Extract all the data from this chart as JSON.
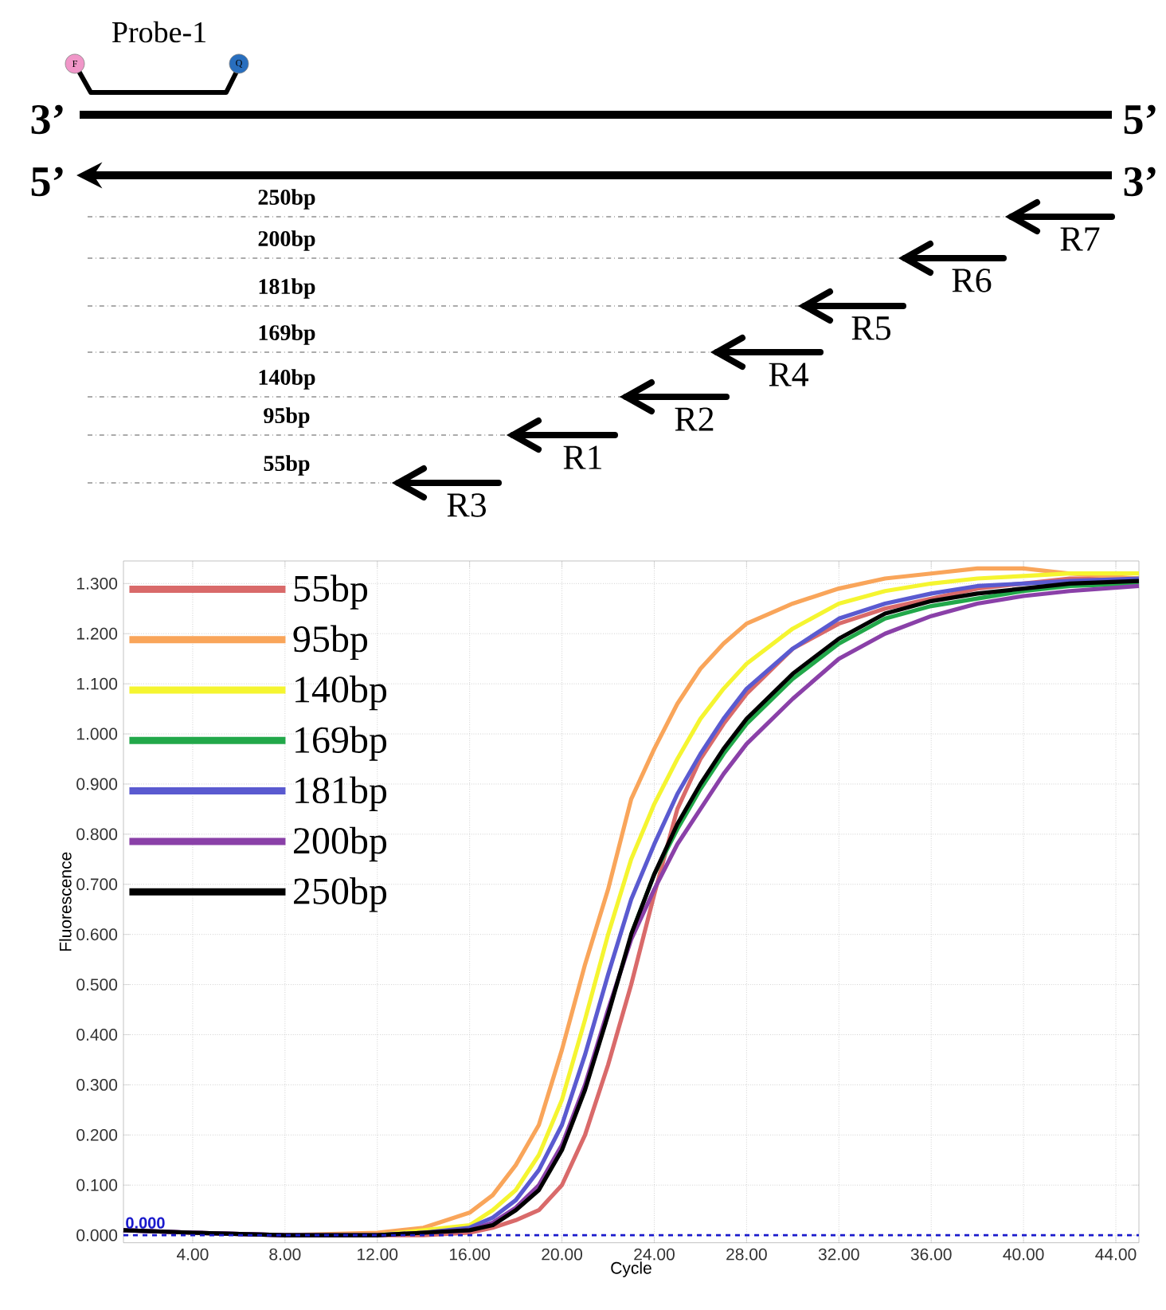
{
  "chart_data": [
    {
      "type": "other",
      "annotations": [
        "Probe-1",
        "F",
        "Q",
        "3’",
        "5’",
        "5’",
        "3’",
        "250bp",
        "R7",
        "200bp",
        "R6",
        "181bp",
        "R5",
        "169bp",
        "R4",
        "140bp",
        "R2",
        "95bp",
        "R1",
        "55bp",
        "R3"
      ]
    },
    {
      "type": "line",
      "xlabel": "Cycle",
      "ylabel": "Fluorescence",
      "xlim": [
        1,
        45
      ],
      "ylim": [
        -0.015,
        1.345
      ],
      "xticks": [
        {
          "value": 4,
          "label": "4.00"
        },
        {
          "value": 8,
          "label": "8.00"
        },
        {
          "value": 12,
          "label": "12.00"
        },
        {
          "value": 16,
          "label": "16.00"
        },
        {
          "value": 20,
          "label": "20.00"
        },
        {
          "value": 24,
          "label": "24.00"
        },
        {
          "value": 28,
          "label": "28.00"
        },
        {
          "value": 32,
          "label": "32.00"
        },
        {
          "value": 36,
          "label": "36.00"
        },
        {
          "value": 40,
          "label": "40.00"
        },
        {
          "value": 44,
          "label": "44.00"
        }
      ],
      "yticks": [
        {
          "value": 0,
          "label": "0.000"
        },
        {
          "value": 0.1,
          "label": "0.100"
        },
        {
          "value": 0.2,
          "label": "0.200"
        },
        {
          "value": 0.3,
          "label": "0.300"
        },
        {
          "value": 0.4,
          "label": "0.400"
        },
        {
          "value": 0.5,
          "label": "0.500"
        },
        {
          "value": 0.6,
          "label": "0.600"
        },
        {
          "value": 0.7,
          "label": "0.700"
        },
        {
          "value": 0.8,
          "label": "0.800"
        },
        {
          "value": 0.9,
          "label": "0.900"
        },
        {
          "value": 1.0,
          "label": "1.000"
        },
        {
          "value": 1.1,
          "label": "1.100"
        },
        {
          "value": 1.2,
          "label": "1.200"
        },
        {
          "value": 1.3,
          "label": "1.300"
        }
      ],
      "grid": true,
      "legend": "top left",
      "line_style": "solid",
      "x": [
        1,
        4,
        8,
        12,
        14,
        16,
        17,
        18,
        19,
        20,
        21,
        22,
        23,
        24,
        25,
        26,
        27,
        28,
        30,
        32,
        34,
        36,
        38,
        40,
        42,
        45
      ],
      "ref_lines": [
        {
          "axis": "y",
          "value": 0,
          "label": "0.000",
          "color": "#1a1acc",
          "line_style": "dashed"
        }
      ],
      "series": [
        {
          "name": "55bp",
          "color": "#d96a6a",
          "values": [
            0.01,
            0.005,
            0.0,
            0.0,
            0.0,
            0.005,
            0.015,
            0.03,
            0.05,
            0.1,
            0.2,
            0.34,
            0.5,
            0.68,
            0.85,
            0.95,
            1.02,
            1.08,
            1.17,
            1.22,
            1.25,
            1.27,
            1.29,
            1.3,
            1.31,
            1.31
          ]
        },
        {
          "name": "95bp",
          "color": "#f9a55a",
          "values": [
            null,
            null,
            0.0,
            0.005,
            0.015,
            0.045,
            0.08,
            0.14,
            0.22,
            0.37,
            0.54,
            0.69,
            0.87,
            0.97,
            1.06,
            1.13,
            1.18,
            1.22,
            1.26,
            1.29,
            1.31,
            1.32,
            1.33,
            1.33,
            1.32,
            1.31
          ]
        },
        {
          "name": "140bp",
          "color": "#f5f530",
          "values": [
            null,
            null,
            0.0,
            0.0,
            0.01,
            0.02,
            0.05,
            0.09,
            0.16,
            0.27,
            0.43,
            0.6,
            0.75,
            0.86,
            0.95,
            1.03,
            1.09,
            1.14,
            1.21,
            1.26,
            1.285,
            1.3,
            1.31,
            1.315,
            1.32,
            1.32
          ]
        },
        {
          "name": "169bp",
          "color": "#22a84a",
          "values": [
            null,
            null,
            null,
            null,
            null,
            null,
            null,
            null,
            null,
            null,
            null,
            null,
            0.6,
            0.72,
            0.81,
            0.89,
            0.96,
            1.02,
            1.11,
            1.18,
            1.23,
            1.255,
            1.27,
            1.285,
            1.295,
            1.3
          ]
        },
        {
          "name": "181bp",
          "color": "#5a5ad0",
          "values": [
            0.01,
            0.005,
            0.0,
            0.0,
            0.005,
            0.015,
            0.035,
            0.07,
            0.13,
            0.22,
            0.36,
            0.52,
            0.67,
            0.78,
            0.88,
            0.96,
            1.03,
            1.09,
            1.17,
            1.23,
            1.26,
            1.28,
            1.295,
            1.3,
            1.305,
            1.31
          ]
        },
        {
          "name": "200bp",
          "color": "#8a40a8",
          "values": [
            0.01,
            0.005,
            0.0,
            0.0,
            0.005,
            0.01,
            0.025,
            0.055,
            0.1,
            0.18,
            0.3,
            0.45,
            0.59,
            0.69,
            0.78,
            0.85,
            0.92,
            0.98,
            1.07,
            1.15,
            1.2,
            1.235,
            1.26,
            1.275,
            1.285,
            1.295
          ]
        },
        {
          "name": "250bp",
          "color": "#000000",
          "values": [
            0.01,
            0.005,
            0.0,
            0.0,
            0.005,
            0.01,
            0.02,
            0.05,
            0.09,
            0.17,
            0.29,
            0.44,
            0.6,
            0.72,
            0.82,
            0.9,
            0.97,
            1.03,
            1.12,
            1.19,
            1.24,
            1.265,
            1.28,
            1.29,
            1.3,
            1.305
          ]
        }
      ]
    }
  ]
}
